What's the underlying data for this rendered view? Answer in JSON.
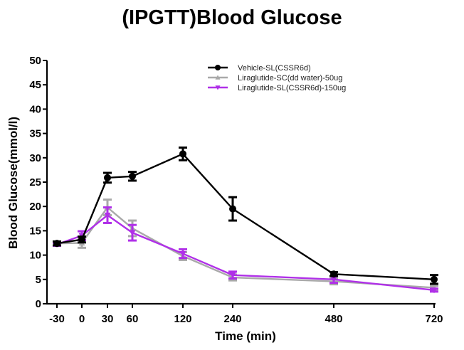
{
  "chart_data": {
    "type": "line",
    "title": "(IPGTT)Blood Glucose",
    "xlabel": "Time (min)",
    "ylabel": "Blood Glucose(mmol/l)",
    "x": [
      -30,
      0,
      30,
      60,
      120,
      240,
      480,
      720
    ],
    "x_tick_labels": [
      "-30",
      "0",
      "30",
      "60",
      "120",
      "240",
      "480",
      "720"
    ],
    "x_scale": "non-linear (segmented)",
    "ylim": [
      0,
      50
    ],
    "y_ticks": [
      0,
      5,
      10,
      15,
      20,
      25,
      30,
      35,
      40,
      45,
      50
    ],
    "y_tick_labels": [
      "0",
      "5",
      "10",
      "15",
      "20",
      "25",
      "30",
      "35",
      "40",
      "45",
      "50"
    ],
    "grid": false,
    "legend_position": "top-right",
    "series": [
      {
        "name": "Vehicle-SL(CSSR6d)",
        "color": "#000000",
        "marker": "circle",
        "values": [
          12.4,
          13.2,
          25.9,
          26.2,
          30.8,
          19.5,
          6.1,
          5.0
        ],
        "errors": [
          0.4,
          0.6,
          1.0,
          0.9,
          1.3,
          2.4,
          0.4,
          0.9
        ]
      },
      {
        "name": "Liraglutide-SC(dd water)-50ug",
        "color": "#a9a9a9",
        "marker": "triangle-up",
        "values": [
          12.4,
          12.5,
          19.8,
          15.5,
          9.8,
          5.4,
          4.6,
          3.3
        ],
        "errors": [
          0.4,
          1.0,
          1.6,
          1.6,
          0.8,
          0.6,
          0.6,
          0.4
        ]
      },
      {
        "name": "Liraglutide-SL(CSSR6d)-150ug",
        "color": "#b030e8",
        "marker": "triangle-down",
        "values": [
          12.2,
          14.0,
          18.2,
          14.6,
          10.3,
          5.9,
          5.0,
          2.8
        ],
        "errors": [
          0.3,
          0.9,
          1.6,
          1.6,
          0.9,
          0.7,
          0.7,
          0.3
        ]
      }
    ]
  }
}
